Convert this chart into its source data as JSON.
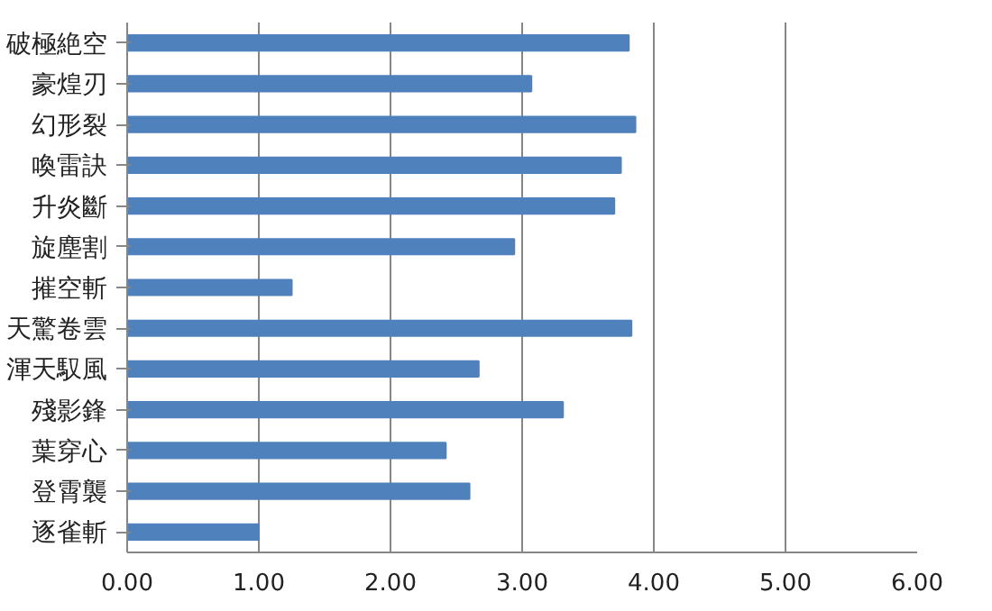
{
  "chart_data": {
    "type": "bar",
    "orientation": "horizontal",
    "categories": [
      "破極絶空",
      "豪煌刃",
      "幻形裂",
      "喚雷訣",
      "升炎斷",
      "旋塵割",
      "摧空斬",
      "天驚卷雲",
      "渾天馭風",
      "殘影鋒",
      "葉穿心",
      "登霄襲",
      "逐雀斬"
    ],
    "values": [
      3.81,
      3.07,
      3.86,
      3.75,
      3.7,
      2.94,
      1.25,
      3.83,
      2.67,
      3.31,
      2.42,
      2.6,
      1.0
    ],
    "color": "#4f81bd",
    "xlim": [
      0,
      6
    ],
    "xticks": [
      {
        "value": 0,
        "label": "0.00"
      },
      {
        "value": 1,
        "label": "1.00"
      },
      {
        "value": 2,
        "label": "2.00"
      },
      {
        "value": 3,
        "label": "3.00"
      },
      {
        "value": 4,
        "label": "4.00"
      },
      {
        "value": 5,
        "label": "5.00"
      },
      {
        "value": 6,
        "label": "6.00"
      }
    ],
    "grid": "x"
  }
}
